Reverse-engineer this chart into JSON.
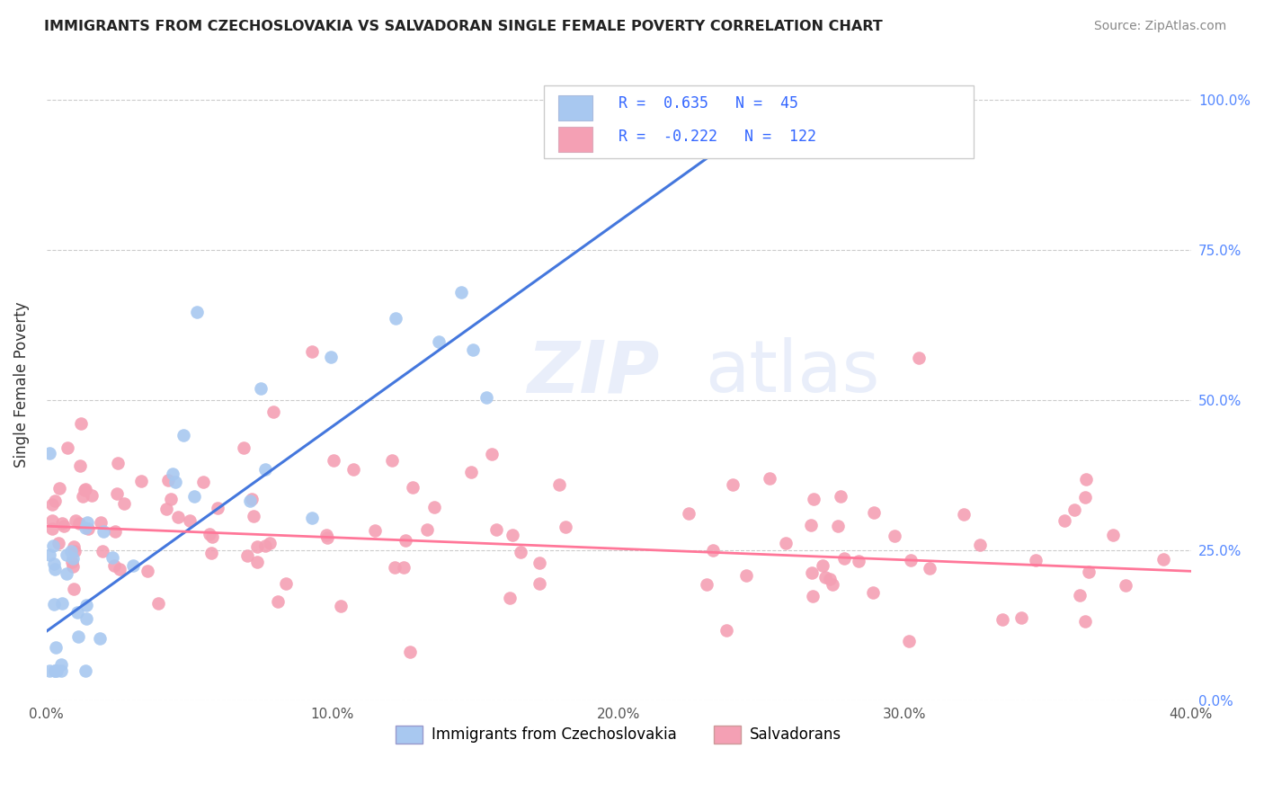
{
  "title": "IMMIGRANTS FROM CZECHOSLOVAKIA VS SALVADORAN SINGLE FEMALE POVERTY CORRELATION CHART",
  "source": "Source: ZipAtlas.com",
  "ylabel_label": "Single Female Poverty",
  "legend_label1": "Immigrants from Czechoslovakia",
  "legend_label2": "Salvadorans",
  "R1": "0.635",
  "N1": "45",
  "R2": "-0.222",
  "N2": "122",
  "color_blue": "#A8C8F0",
  "color_pink": "#F4A0B4",
  "color_blue_line": "#4477DD",
  "color_pink_line": "#FF7799",
  "color_title": "#222222",
  "color_source": "#888888",
  "color_stats": "#3366FF",
  "xmin": 0.0,
  "xmax": 0.4,
  "ymin": 0.0,
  "ymax": 1.05,
  "xticks": [
    0.0,
    0.1,
    0.2,
    0.3,
    0.4
  ],
  "yticks": [
    0.0,
    0.25,
    0.5,
    0.75,
    1.0
  ],
  "blue_line_x": [
    0.0,
    0.255
  ],
  "blue_line_y": [
    0.115,
    0.985
  ],
  "pink_line_x": [
    0.0,
    0.4
  ],
  "pink_line_y": [
    0.29,
    0.215
  ]
}
